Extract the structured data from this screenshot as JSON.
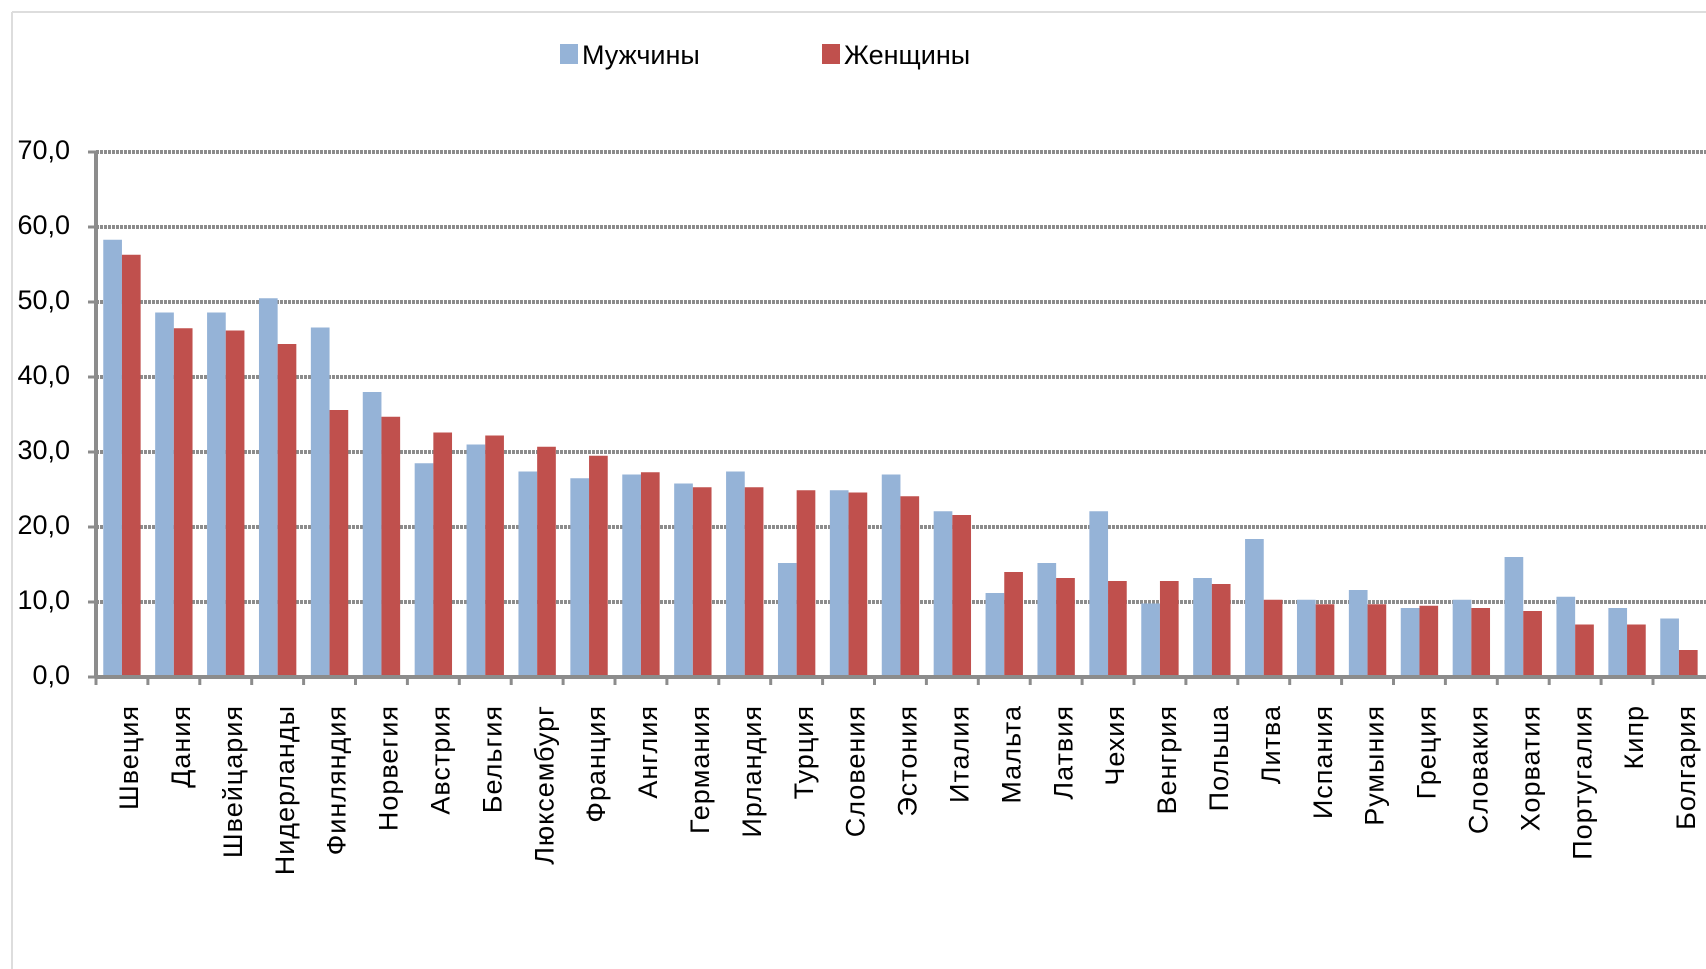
{
  "chart_data": {
    "type": "bar",
    "categories": [
      "Швеция",
      "Дания",
      "Швейцария",
      "Нидерланды",
      "Финляндия",
      "Норвегия",
      "Австрия",
      "Бельгия",
      "Люксембург",
      "Франция",
      "Англия",
      "Германия",
      "Ирландия",
      "Турция",
      "Словения",
      "Эстония",
      "Италия",
      "Мальта",
      "Латвия",
      "Чехия",
      "Венгрия",
      "Польша",
      "Литва",
      "Испания",
      "Румыния",
      "Греция",
      "Словакия",
      "Хорватия",
      "Португалия",
      "Кипр",
      "Болгария"
    ],
    "series": [
      {
        "name": "Мужчины",
        "color": "#95b3d7",
        "values": [
          58.3,
          48.6,
          48.6,
          50.5,
          46.6,
          38.0,
          28.5,
          31.0,
          27.4,
          26.5,
          27.0,
          25.8,
          27.4,
          15.2,
          24.9,
          27.0,
          22.1,
          11.2,
          15.2,
          22.1,
          9.8,
          13.2,
          18.4,
          10.3,
          11.6,
          9.2,
          10.3,
          16.0,
          10.7,
          9.2,
          7.8
        ]
      },
      {
        "name": "Женщины",
        "color": "#c0504d",
        "values": [
          56.3,
          46.5,
          46.2,
          44.4,
          35.6,
          34.7,
          32.6,
          32.2,
          30.7,
          29.5,
          27.3,
          25.3,
          25.3,
          24.9,
          24.6,
          24.1,
          21.6,
          14.0,
          13.2,
          12.8,
          12.8,
          12.4,
          10.3,
          9.7,
          9.7,
          9.5,
          9.2,
          8.8,
          7.0,
          7.0,
          3.6
        ]
      }
    ],
    "ylim": [
      0,
      70
    ],
    "yticks": [
      {
        "value": 0,
        "label": "0,0"
      },
      {
        "value": 10,
        "label": "10,0"
      },
      {
        "value": 20,
        "label": "20,0"
      },
      {
        "value": 30,
        "label": "30,0"
      },
      {
        "value": 40,
        "label": "40,0"
      },
      {
        "value": 50,
        "label": "50,0"
      },
      {
        "value": 60,
        "label": "60,0"
      },
      {
        "value": 70,
        "label": "70,0"
      }
    ],
    "grid": true,
    "legend": "top"
  }
}
